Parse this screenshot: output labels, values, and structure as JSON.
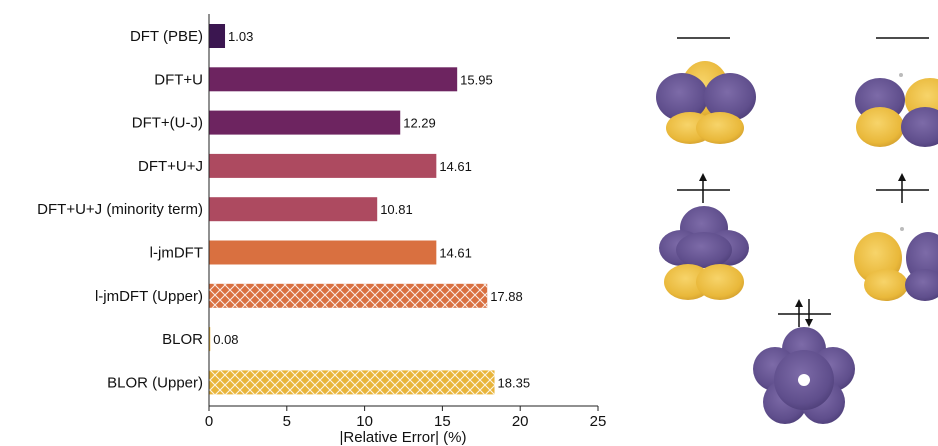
{
  "chart_data": {
    "type": "bar",
    "orientation": "horizontal",
    "categories": [
      "DFT (PBE)",
      "DFT+U",
      "DFT+(U-J)",
      "DFT+U+J",
      "DFT+U+J (minority term)",
      "l-jmDFT",
      "l-jmDFT (Upper)",
      "BLOR",
      "BLOR (Upper)"
    ],
    "values": [
      1.03,
      15.95,
      12.29,
      14.61,
      10.81,
      14.61,
      17.88,
      0.08,
      18.35
    ],
    "value_labels": [
      "1.03",
      "15.95",
      "12.29",
      "14.61",
      "10.81",
      "14.61",
      "17.88",
      "0.08",
      "18.35"
    ],
    "colors": [
      "#3b1650",
      "#6d2460",
      "#6d2460",
      "#ad4a60",
      "#ad4a60",
      "#d97040",
      "#d97040",
      "#e8b43a",
      "#e8b43a"
    ],
    "hatched": [
      false,
      false,
      false,
      false,
      false,
      false,
      true,
      false,
      true
    ],
    "xlabel": "|Relative Error| (%)",
    "xlim": [
      0,
      25
    ],
    "xticks": [
      "0",
      "5",
      "10",
      "15",
      "20",
      "25"
    ],
    "grid": false,
    "legend": "none"
  },
  "orbitals": {
    "colors": {
      "positive": "#f2c244",
      "negative": "#6b5a94"
    },
    "occupancy": [
      "empty",
      "empty",
      "spin-up",
      "spin-up",
      "paired"
    ]
  }
}
